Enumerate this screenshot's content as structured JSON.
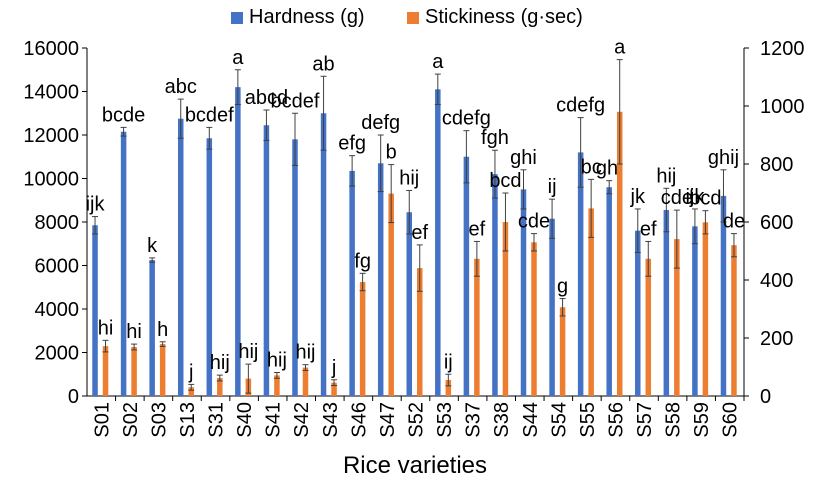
{
  "chart_data": {
    "type": "bar",
    "title": "",
    "xlabel": "Rice varieties",
    "ylabel": "",
    "y2label": "",
    "ylim": [
      0,
      16000
    ],
    "y2lim": [
      0,
      1200
    ],
    "yticks": [
      "0",
      "2000",
      "4000",
      "6000",
      "8000",
      "10000",
      "12000",
      "14000",
      "16000"
    ],
    "y2ticks": [
      "0",
      "200",
      "400",
      "600",
      "800",
      "1000",
      "1200"
    ],
    "grid": false,
    "legend_position": "top-center",
    "categories": [
      "S01",
      "S02",
      "S03",
      "S13",
      "S31",
      "S40",
      "S41",
      "S42",
      "S43",
      "S46",
      "S47",
      "S52",
      "S53",
      "S37",
      "S38",
      "S44",
      "S54",
      "S55",
      "S56",
      "S57",
      "S58",
      "S59",
      "S60"
    ],
    "series": [
      {
        "name": "Hardness (g)",
        "axis": "left",
        "color": "#4472C4",
        "values": [
          7850,
          12150,
          6250,
          12750,
          11850,
          14200,
          12450,
          11800,
          13000,
          10350,
          10700,
          8450,
          14100,
          11000,
          10200,
          9500,
          8150,
          11200,
          9600,
          7600,
          8550,
          7800,
          9200
        ],
        "errors": [
          400,
          200,
          100,
          900,
          500,
          800,
          700,
          1200,
          1700,
          700,
          1300,
          1000,
          700,
          1200,
          1100,
          900,
          900,
          1600,
          300,
          1000,
          1000,
          800,
          1200
        ],
        "labels": [
          "ijk",
          "bcde",
          "k",
          "abc",
          "bcdef",
          "a",
          "abcd",
          "bcdef",
          "ab",
          "efg",
          "defg",
          "hij",
          "a",
          "cdefg",
          "fgh",
          "ghi",
          "ij",
          "cdefg",
          "ghi",
          "jk",
          "hij",
          "ijk",
          "ghij"
        ]
      },
      {
        "name": "Stickiness (g·sec)",
        "axis": "right",
        "color": "#ED7D31",
        "values": [
          172,
          169,
          179,
          30,
          62,
          60,
          71,
          98,
          46,
          393,
          698,
          441,
          55,
          473,
          600,
          530,
          306,
          647,
          980,
          473,
          541,
          599,
          520
        ],
        "errors": [
          20,
          10,
          8,
          10,
          10,
          50,
          10,
          10,
          10,
          30,
          100,
          80,
          20,
          60,
          100,
          30,
          30,
          100,
          180,
          60,
          100,
          40,
          40
        ],
        "labels": [
          "hi",
          "hi",
          "h",
          "j",
          "hij",
          "hij",
          "hij",
          "hij",
          "j",
          "fg",
          "b",
          "ef",
          "ij",
          "ef",
          "bcd",
          "cde",
          "g",
          "bc",
          "a",
          "ef",
          "cde",
          "bcd",
          "de"
        ]
      }
    ]
  }
}
